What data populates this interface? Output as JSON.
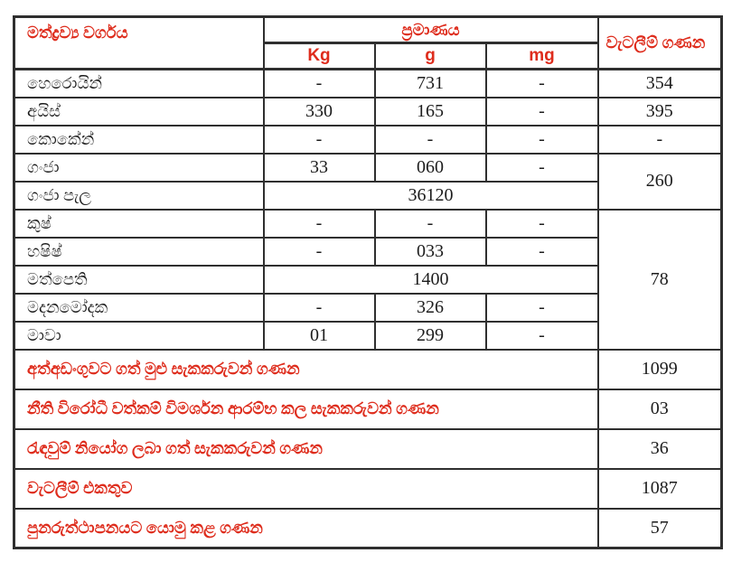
{
  "colors": {
    "accent_red": "#de2c1c",
    "text_black": "#1c1c1c",
    "border_dark": "#2f2f2f",
    "background": "#ffffff"
  },
  "table": {
    "header": {
      "drug_type": "මත්ද්‍රව්‍ය වර්ගය",
      "quantity": "ප්‍රමාණය",
      "units": [
        "Kg",
        "g",
        "mg"
      ],
      "raids": "වැටලීම් ගණන"
    },
    "rows": {
      "heroin": {
        "label": "හෙරොයින්",
        "kg": "-",
        "g": "731",
        "mg": "-",
        "raids": "354"
      },
      "ice": {
        "label": "අයිස්",
        "kg": "330",
        "g": "165",
        "mg": "-",
        "raids": "395"
      },
      "cocaine": {
        "label": "කොකේන්",
        "kg": "-",
        "g": "-",
        "mg": "-",
        "raids": "-"
      },
      "ganja": {
        "label": "ගංජා",
        "kg": "33",
        "g": "060",
        "mg": "-",
        "raids_group": "260"
      },
      "ganja_plants": {
        "label": "ගංජා පැල",
        "quantity": "36120"
      },
      "kush": {
        "label": "කුෂ්",
        "kg": "-",
        "g": "-",
        "mg": "-",
        "raids_group": "78"
      },
      "hashish": {
        "label": "හෂිෂ්",
        "kg": "-",
        "g": "033",
        "mg": "-"
      },
      "pills": {
        "label": "මත්පෙති",
        "quantity": "1400"
      },
      "madana_modaka": {
        "label": "මදනමෝදක",
        "kg": "-",
        "g": "326",
        "mg": "-"
      },
      "mawa": {
        "label": "මාවා",
        "kg": "01",
        "g": "299",
        "mg": "-"
      }
    },
    "summary": [
      {
        "label": "අත්අඩංගුවට ගත් මුළු සැකකරුවන් ගණන",
        "value": "1099"
      },
      {
        "label": "නීති විරෝධී වත්කම් විමර්ශන ආරම්භ කල සැකකරුවන් ගණන",
        "value": "03"
      },
      {
        "label": "රැඳවුම් නියෝග ලබා ගත් සැකකරුවන් ගණන",
        "value": "36"
      },
      {
        "label": "වැටලීම් එකතුව",
        "value": "1087"
      },
      {
        "label": "පුනරුත්ථාපනයට යොමු කළ ගණන",
        "value": "57"
      }
    ]
  }
}
